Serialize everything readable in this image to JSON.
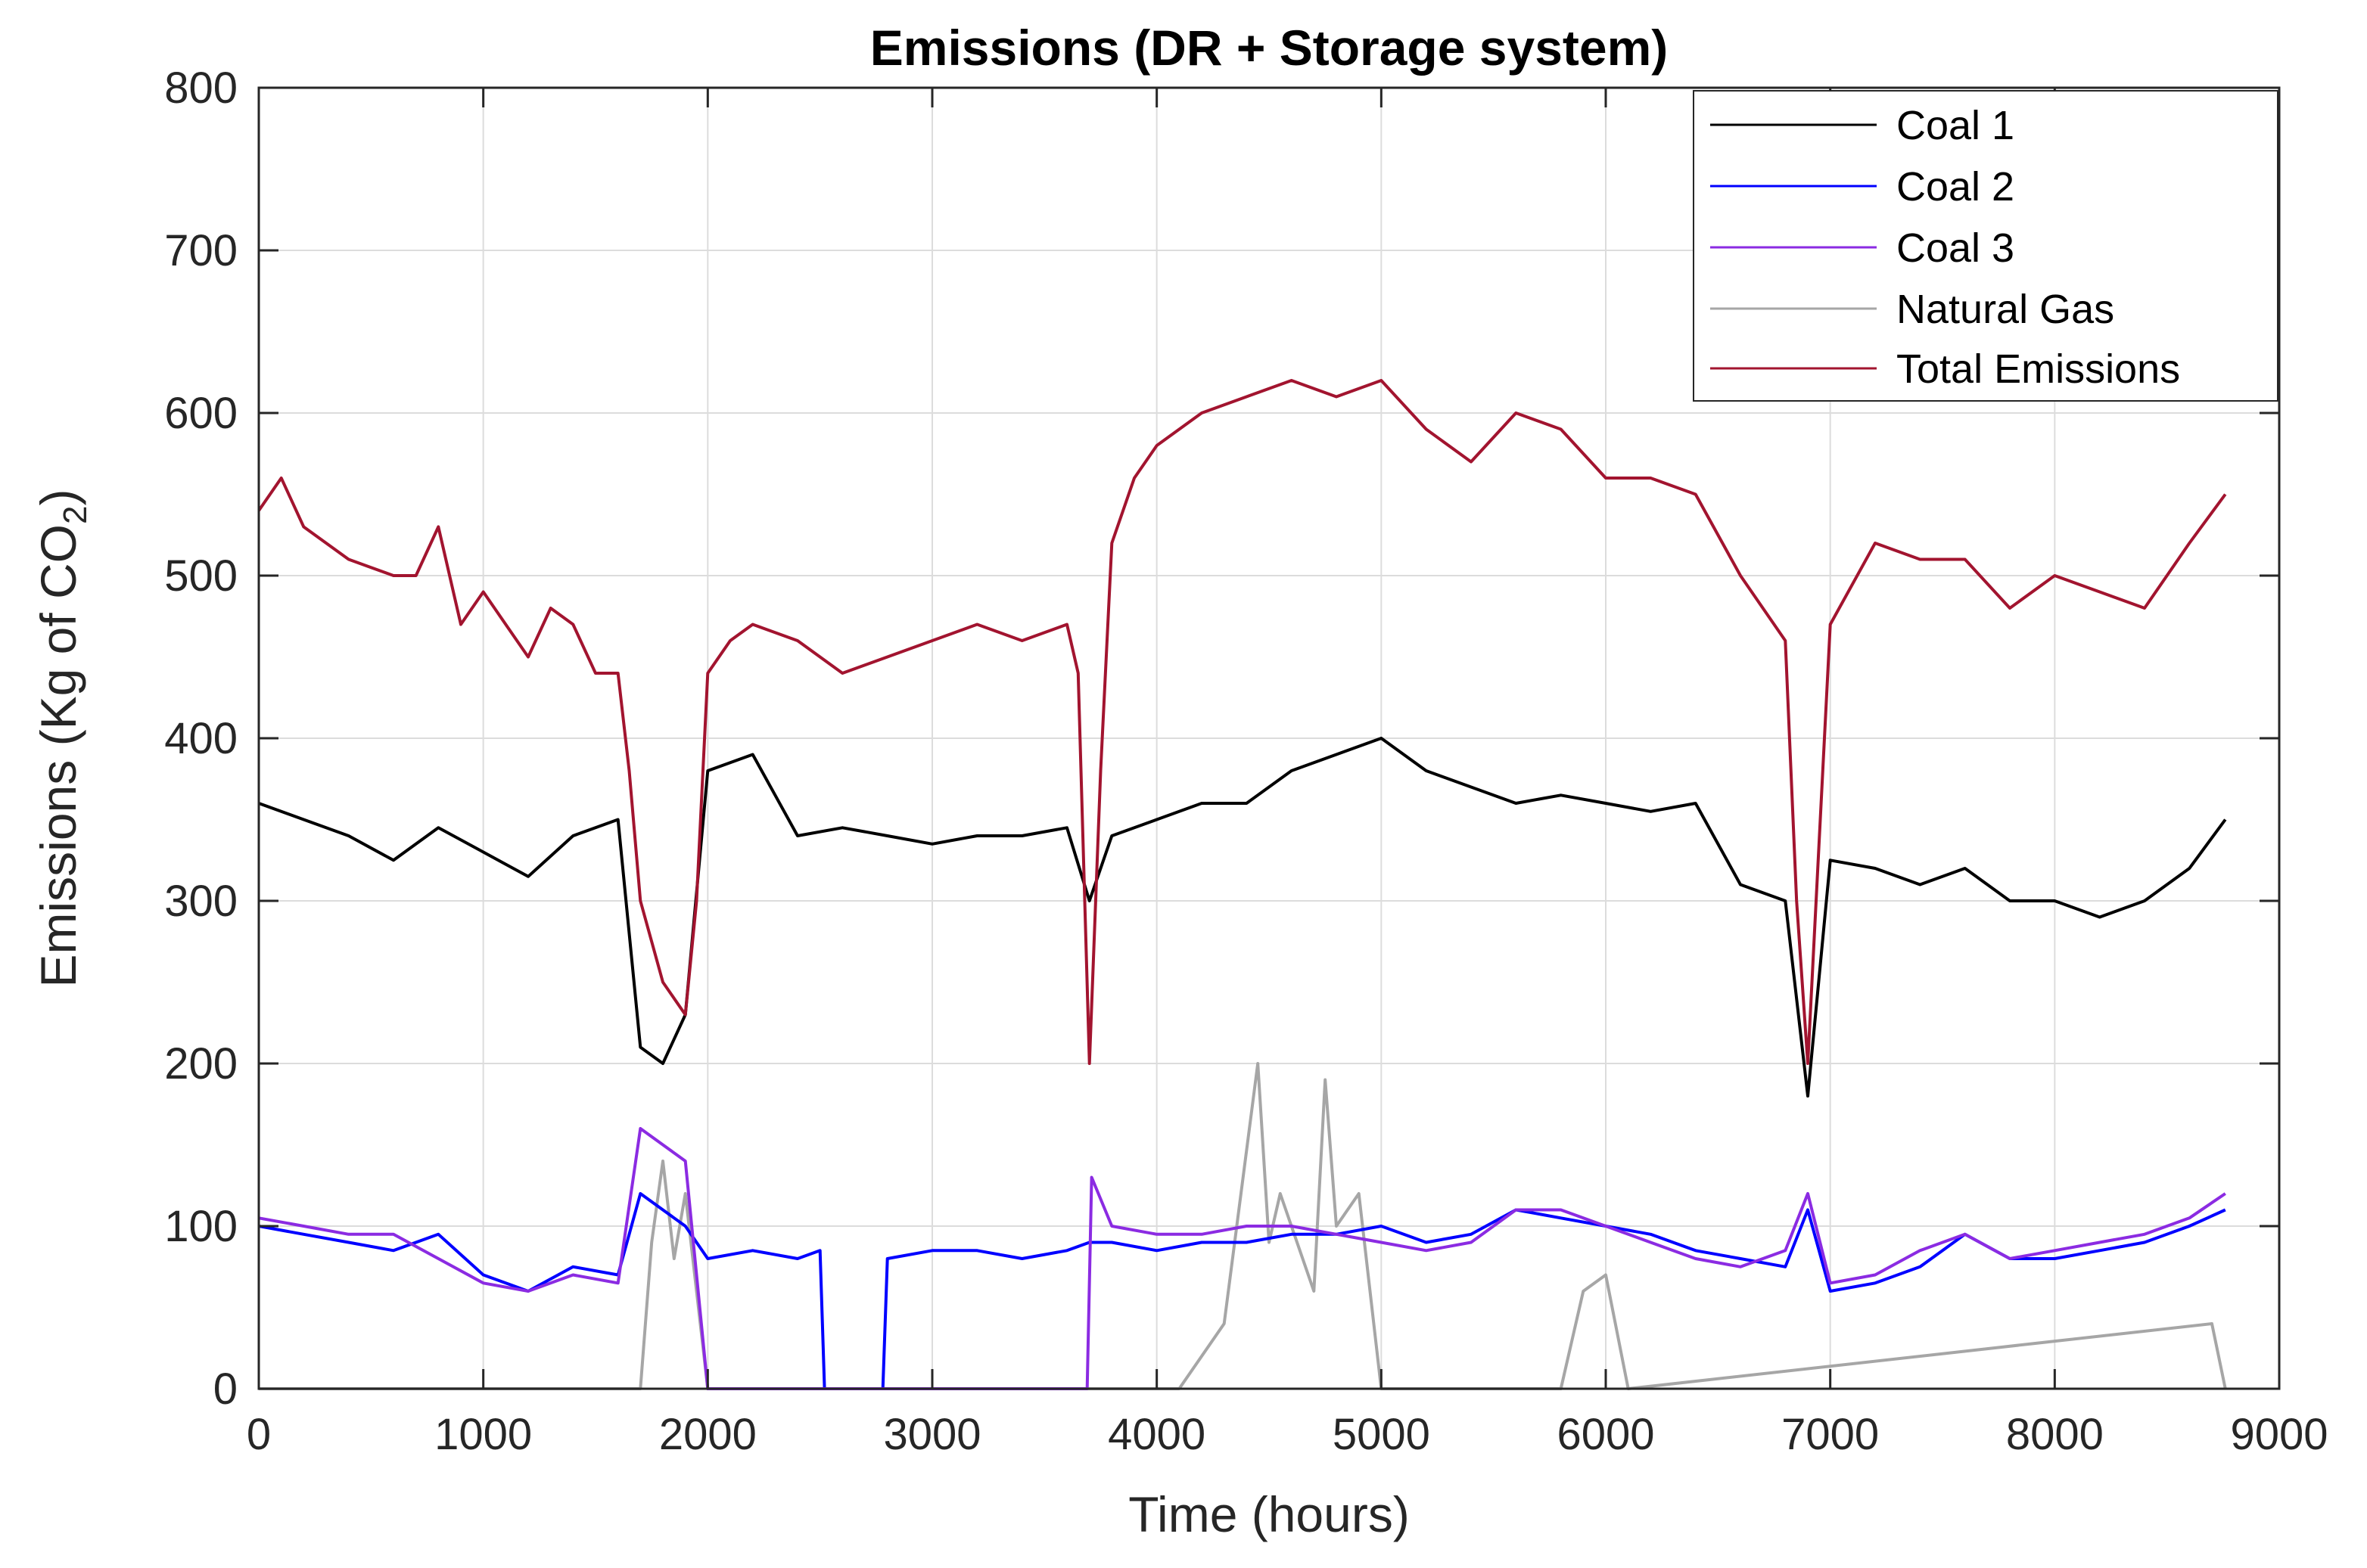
{
  "chart_data": {
    "type": "line",
    "title": "Emissions (DR + Storage system)",
    "xlabel": "Time (hours)",
    "ylabel": "Emissions (Kg of CO",
    "ylabel_subscript": "2",
    "ylabel_close": ")",
    "xlim": [
      0,
      9000
    ],
    "ylim": [
      0,
      800
    ],
    "xticks": [
      "0",
      "1000",
      "2000",
      "3000",
      "4000",
      "5000",
      "6000",
      "7000",
      "8000",
      "9000"
    ],
    "yticks": [
      "0",
      "100",
      "200",
      "300",
      "400",
      "500",
      "600",
      "700",
      "800"
    ],
    "grid": true,
    "legend_position": "top-right",
    "series": [
      {
        "name": "Coal 1",
        "color": "#000000",
        "x": [
          0,
          200,
          400,
          600,
          800,
          1000,
          1200,
          1400,
          1600,
          1700,
          1800,
          1900,
          2000,
          2200,
          2400,
          2600,
          2800,
          3000,
          3200,
          3400,
          3600,
          3700,
          3800,
          4000,
          4200,
          4400,
          4600,
          4800,
          5000,
          5200,
          5400,
          5600,
          5800,
          6000,
          6200,
          6400,
          6600,
          6800,
          6900,
          7000,
          7200,
          7400,
          7600,
          7800,
          8000,
          8200,
          8400,
          8600,
          8760
        ],
        "values": [
          360,
          350,
          340,
          325,
          345,
          330,
          315,
          340,
          350,
          210,
          200,
          230,
          380,
          390,
          340,
          345,
          340,
          335,
          340,
          340,
          345,
          300,
          340,
          350,
          360,
          360,
          380,
          390,
          400,
          380,
          370,
          360,
          365,
          360,
          355,
          360,
          310,
          300,
          180,
          325,
          320,
          310,
          320,
          300,
          300,
          290,
          300,
          320,
          350
        ]
      },
      {
        "name": "Coal 2",
        "color": "#0000ff",
        "x": [
          0,
          200,
          400,
          600,
          800,
          1000,
          1200,
          1400,
          1600,
          1700,
          1800,
          1900,
          2000,
          2200,
          2400,
          2500,
          2520,
          2780,
          2800,
          3000,
          3200,
          3400,
          3600,
          3700,
          3800,
          4000,
          4200,
          4400,
          4600,
          4800,
          5000,
          5200,
          5400,
          5600,
          5800,
          6000,
          6200,
          6400,
          6600,
          6800,
          6900,
          7000,
          7200,
          7400,
          7600,
          7800,
          8000,
          8200,
          8400,
          8600,
          8760
        ],
        "values": [
          100,
          95,
          90,
          85,
          95,
          70,
          60,
          75,
          70,
          120,
          110,
          100,
          80,
          85,
          80,
          85,
          0,
          0,
          80,
          85,
          85,
          80,
          85,
          90,
          90,
          85,
          90,
          90,
          95,
          95,
          100,
          90,
          95,
          110,
          105,
          100,
          95,
          85,
          80,
          75,
          110,
          60,
          65,
          75,
          95,
          80,
          80,
          85,
          90,
          100,
          110
        ]
      },
      {
        "name": "Coal 3",
        "color": "#8b2be2",
        "x": [
          0,
          200,
          400,
          600,
          800,
          1000,
          1200,
          1400,
          1600,
          1700,
          1800,
          1900,
          2000,
          2500,
          2520,
          2780,
          3690,
          3710,
          3800,
          4000,
          4200,
          4400,
          4600,
          4800,
          5000,
          5200,
          5400,
          5600,
          5800,
          6000,
          6200,
          6400,
          6600,
          6800,
          6900,
          7000,
          7200,
          7400,
          7600,
          7800,
          8000,
          8200,
          8400,
          8600,
          8760
        ],
        "values": [
          105,
          100,
          95,
          95,
          80,
          65,
          60,
          70,
          65,
          160,
          150,
          140,
          0,
          0,
          0,
          0,
          0,
          130,
          100,
          95,
          95,
          100,
          100,
          95,
          90,
          85,
          90,
          110,
          110,
          100,
          90,
          80,
          75,
          85,
          120,
          65,
          70,
          85,
          95,
          80,
          85,
          90,
          95,
          105,
          120
        ]
      },
      {
        "name": "Natural Gas",
        "color": "#a6a6a6",
        "x": [
          0,
          1700,
          1750,
          1800,
          1850,
          1900,
          1950,
          2000,
          4100,
          4300,
          4450,
          4500,
          4550,
          4700,
          4750,
          4800,
          4900,
          5000,
          5800,
          5900,
          6000,
          6100,
          8700,
          8760
        ],
        "values": [
          0,
          0,
          90,
          140,
          80,
          120,
          60,
          0,
          0,
          40,
          200,
          90,
          120,
          60,
          190,
          100,
          120,
          0,
          0,
          60,
          70,
          0,
          40,
          0
        ]
      },
      {
        "name": "Total Emissions",
        "color": "#a2142f",
        "x": [
          0,
          100,
          200,
          300,
          400,
          500,
          600,
          700,
          800,
          900,
          1000,
          1100,
          1200,
          1300,
          1400,
          1500,
          1600,
          1650,
          1700,
          1800,
          1900,
          1950,
          2000,
          2100,
          2200,
          2400,
          2600,
          2800,
          3000,
          3200,
          3400,
          3600,
          3650,
          3700,
          3750,
          3800,
          3900,
          4000,
          4200,
          4400,
          4600,
          4800,
          5000,
          5200,
          5400,
          5600,
          5800,
          6000,
          6200,
          6400,
          6600,
          6800,
          6850,
          6900,
          7000,
          7200,
          7400,
          7600,
          7800,
          8000,
          8200,
          8400,
          8600,
          8760
        ],
        "values": [
          540,
          560,
          530,
          520,
          510,
          505,
          500,
          500,
          530,
          470,
          490,
          470,
          450,
          480,
          470,
          440,
          440,
          380,
          300,
          250,
          230,
          300,
          440,
          460,
          470,
          460,
          440,
          450,
          460,
          470,
          460,
          470,
          440,
          200,
          380,
          520,
          560,
          580,
          600,
          610,
          620,
          610,
          620,
          590,
          570,
          600,
          590,
          560,
          560,
          550,
          500,
          460,
          300,
          200,
          470,
          520,
          510,
          510,
          480,
          500,
          490,
          480,
          520,
          550
        ]
      }
    ]
  }
}
